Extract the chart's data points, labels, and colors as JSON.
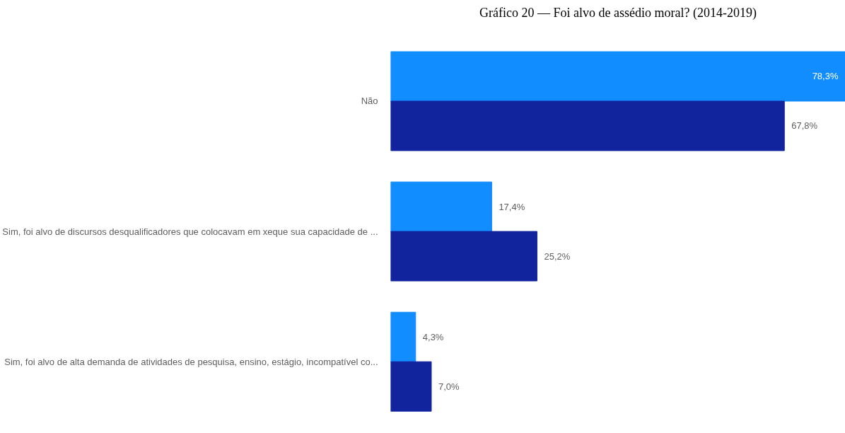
{
  "chart_data": {
    "type": "bar",
    "orientation": "horizontal",
    "title": "Gráfico 20 — Foi alvo de assédio moral? (2014-2019)",
    "categories": [
      "Não",
      "Sim, foi alvo de discursos desqualificadores que colocavam em xeque sua capacidade de ...",
      "Sim, foi alvo de alta demanda de atividades de pesquisa, ensino, estágio, incompatível co..."
    ],
    "series": [
      {
        "color": "#118dff",
        "values": [
          78.3,
          17.4,
          4.3
        ],
        "value_labels": [
          "78,3%",
          "17,4%",
          "4,3%"
        ]
      },
      {
        "color": "#12239e",
        "values": [
          67.8,
          25.2,
          7.0
        ],
        "value_labels": [
          "67,8%",
          "25,2%",
          "7,0%"
        ]
      }
    ],
    "grid": false
  }
}
